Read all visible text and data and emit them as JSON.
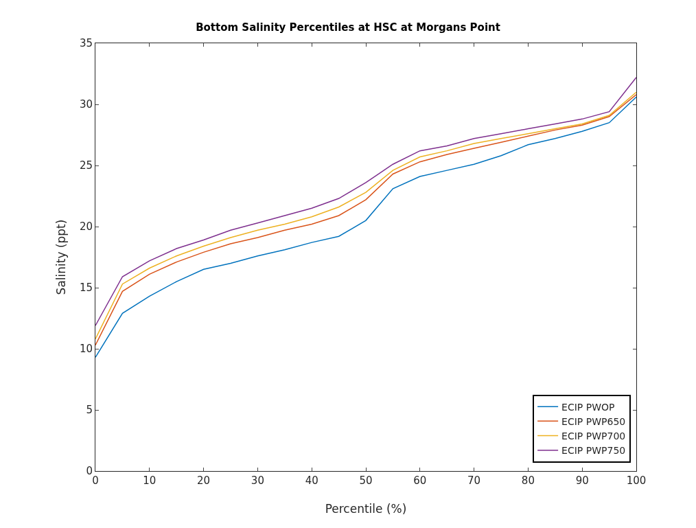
{
  "chart_data": {
    "type": "line",
    "title": "Bottom Salinity Percentiles at HSC at Morgans Point",
    "xlabel": "Percentile (%)",
    "ylabel": "Salinity (ppt)",
    "x": [
      0,
      5,
      10,
      15,
      20,
      25,
      30,
      35,
      40,
      45,
      50,
      55,
      60,
      65,
      70,
      75,
      80,
      85,
      90,
      95,
      100
    ],
    "series": [
      {
        "name": "ECIP PWOP",
        "color": "#0072bd",
        "values": [
          9.3,
          12.9,
          14.3,
          15.5,
          16.5,
          17.0,
          17.6,
          18.1,
          18.7,
          19.2,
          20.5,
          23.1,
          24.1,
          24.6,
          25.1,
          25.8,
          26.7,
          27.2,
          27.8,
          28.5,
          30.6
        ]
      },
      {
        "name": "ECIP PWP650",
        "color": "#d95319",
        "values": [
          10.3,
          14.7,
          16.1,
          17.1,
          17.9,
          18.6,
          19.1,
          19.7,
          20.2,
          20.9,
          22.2,
          24.3,
          25.3,
          25.9,
          26.4,
          26.9,
          27.4,
          27.9,
          28.3,
          29.0,
          30.8
        ]
      },
      {
        "name": "ECIP PWP700",
        "color": "#edb120",
        "values": [
          10.8,
          15.3,
          16.6,
          17.6,
          18.4,
          19.1,
          19.7,
          20.2,
          20.8,
          21.6,
          22.8,
          24.6,
          25.7,
          26.2,
          26.8,
          27.2,
          27.6,
          28.0,
          28.4,
          29.1,
          31.0
        ]
      },
      {
        "name": "ECIP PWP750",
        "color": "#7e2f8e",
        "values": [
          11.9,
          15.9,
          17.2,
          18.2,
          18.9,
          19.7,
          20.3,
          20.9,
          21.5,
          22.3,
          23.6,
          25.1,
          26.2,
          26.6,
          27.2,
          27.6,
          28.0,
          28.4,
          28.8,
          29.4,
          32.2
        ]
      }
    ],
    "xlim": [
      0,
      100
    ],
    "xticks": [
      0,
      10,
      20,
      30,
      40,
      50,
      60,
      70,
      80,
      90,
      100
    ],
    "ylim": [
      0,
      35
    ],
    "yticks": [
      0,
      5,
      10,
      15,
      20,
      25,
      30,
      35
    ],
    "grid": false,
    "legend": "bottom right",
    "marker": "none",
    "line_style": "solid"
  }
}
